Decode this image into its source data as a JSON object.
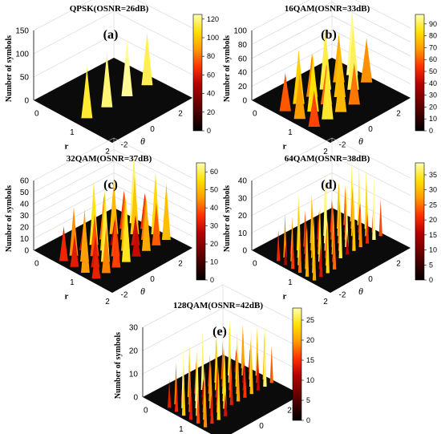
{
  "figure": {
    "colormap": [
      "#000000",
      "#5a0000",
      "#b40000",
      "#ff3000",
      "#ff9a00",
      "#ffe000",
      "#ffffb0"
    ],
    "floor_color": "#0b0b0b"
  },
  "chart_data": [
    {
      "type": "surface3d",
      "title": "QPSK(OSNR=26dB)",
      "panel_label": "(a)",
      "zlabel": "Number of symbols",
      "xlabel": "θ",
      "ylabel": "r",
      "zlim": [
        0,
        150
      ],
      "zticks": [
        "0",
        "50",
        "100",
        "150"
      ],
      "theta_ticks": [
        "-2",
        "0",
        "2"
      ],
      "r_ticks": [
        "0",
        "1",
        "2"
      ],
      "colorbar": {
        "min": 0,
        "max": 125,
        "ticks": [
          "0",
          "20",
          "40",
          "60",
          "80",
          "100",
          "120"
        ]
      },
      "peak_ring_radius": 1.0,
      "peak_thetas": [
        -2.36,
        -0.79,
        0.79,
        2.36
      ],
      "peak_heights": [
        110,
        118,
        122,
        114
      ]
    },
    {
      "type": "surface3d",
      "title": "16QAM(OSNR=33dB)",
      "panel_label": "(b)",
      "zlabel": "Number of symbols",
      "xlabel": "θ",
      "ylabel": "r",
      "zlim": [
        0,
        100
      ],
      "zticks": [
        "0",
        "20",
        "40",
        "60",
        "80",
        "100"
      ],
      "theta_ticks": [
        "-2",
        "0",
        "2"
      ],
      "r_ticks": [
        "0",
        "1",
        "2"
      ],
      "colorbar": {
        "min": 0,
        "max": 98,
        "ticks": [
          "0",
          "10",
          "20",
          "30",
          "40",
          "50",
          "60",
          "70",
          "80",
          "90"
        ]
      },
      "peak_heights": [
        55,
        78,
        62,
        88,
        70,
        95,
        66,
        82,
        58,
        74,
        90,
        64,
        52,
        86,
        72,
        60
      ]
    },
    {
      "type": "surface3d",
      "title": "32QAM(OSNR=37dB)",
      "panel_label": "(c)",
      "zlabel": "Number of symbols",
      "xlabel": "θ",
      "ylabel": "r",
      "zlim": [
        0,
        60
      ],
      "zticks": [
        "0",
        "10",
        "20",
        "30",
        "40",
        "50",
        "60"
      ],
      "theta_ticks": [
        "-2",
        "0",
        "2"
      ],
      "r_ticks": [
        "0",
        "1",
        "2"
      ],
      "colorbar": {
        "min": 0,
        "max": 65,
        "ticks": [
          "0",
          "10",
          "20",
          "30",
          "40",
          "50",
          "60"
        ]
      },
      "peak_heights": [
        30,
        42,
        25,
        55,
        38,
        48,
        33,
        60,
        28,
        45,
        36,
        52,
        22,
        40,
        50,
        31,
        44,
        27,
        58,
        35,
        47,
        26,
        39,
        53,
        29,
        41,
        34,
        56,
        24,
        46,
        37,
        49
      ]
    },
    {
      "type": "surface3d",
      "title": "64QAM(OSNR=38dB)",
      "panel_label": "(d)",
      "zlabel": "Number of symbols",
      "xlabel": "θ",
      "ylabel": "r",
      "zlim": [
        0,
        40
      ],
      "zticks": [
        "0",
        "10",
        "20",
        "30",
        "40"
      ],
      "theta_ticks": [
        "-2",
        "0",
        "2"
      ],
      "r_ticks": [
        "0",
        "1",
        "2"
      ],
      "colorbar": {
        "min": 0,
        "max": 39,
        "ticks": [
          "0",
          "5",
          "10",
          "15",
          "20",
          "25",
          "30",
          "35"
        ]
      },
      "peak_heights": [
        18,
        25,
        14,
        32,
        21,
        28,
        16,
        36,
        19,
        27,
        23,
        34,
        12,
        26,
        30,
        17,
        29,
        15,
        38,
        22,
        31,
        13,
        24,
        35,
        20,
        33,
        11,
        28,
        26,
        37,
        18,
        25,
        21,
        30,
        16,
        34,
        23,
        27,
        14,
        32,
        19,
        29,
        24,
        36,
        12,
        22,
        31,
        17,
        28,
        33,
        15,
        26,
        20,
        35,
        13,
        30,
        25,
        18,
        38,
        21,
        27,
        16,
        32,
        23
      ]
    },
    {
      "type": "surface3d",
      "title": "128QAM(OSNR=42dB)",
      "panel_label": "(e)",
      "zlabel": "Number of symbols",
      "xlabel": "θ",
      "ylabel": "r",
      "zlim": [
        0,
        30
      ],
      "zticks": [
        "0",
        "10",
        "20",
        "30"
      ],
      "theta_ticks": [
        "-2",
        "0",
        "2"
      ],
      "r_ticks": [
        "0",
        "1",
        "2"
      ],
      "colorbar": {
        "min": 0,
        "max": 28,
        "ticks": [
          "0",
          "5",
          "10",
          "15",
          "20",
          "25"
        ]
      },
      "peak_heights": [
        12,
        18,
        9,
        22,
        14,
        26,
        11,
        20,
        16,
        24,
        10,
        19,
        13,
        28,
        15,
        21,
        8,
        17,
        23,
        12,
        25,
        14,
        19,
        10,
        22,
        16,
        27,
        11,
        18,
        13,
        20,
        15,
        24,
        9,
        17,
        21,
        12,
        26,
        14,
        19,
        10,
        23,
        16,
        18,
        11,
        25,
        13,
        20,
        15,
        22,
        9,
        17,
        24,
        12,
        19,
        14,
        21,
        10,
        26,
        16,
        18,
        13,
        23,
        11
      ]
    }
  ]
}
